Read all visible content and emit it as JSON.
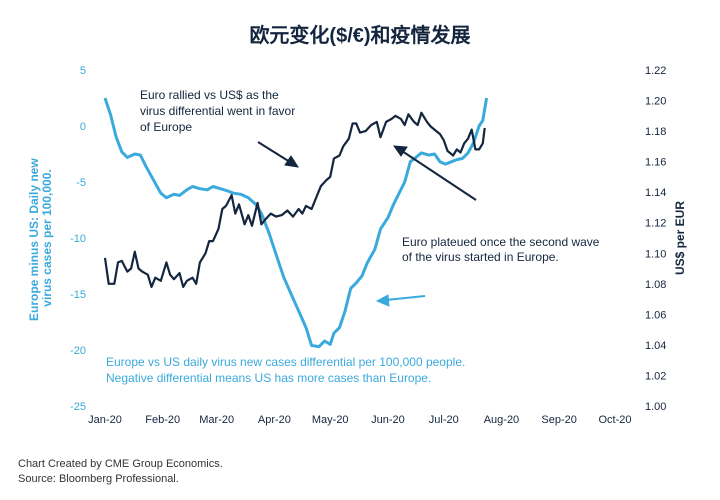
{
  "chart_data": {
    "type": "line",
    "title": "欧元变化($/€)和疫情发展",
    "x_ticks": [
      "Jan-20",
      "Feb-20",
      "Mar-20",
      "Apr-20",
      "May-20",
      "Jun-20",
      "Jul-20",
      "Aug-20",
      "Sep-20",
      "Oct-20"
    ],
    "y_left": {
      "label": "Europe minus US: Daily new virus cases per 100,000.",
      "ticks": [
        "5",
        "0",
        "-5",
        "-10",
        "-15",
        "-20",
        "-25"
      ],
      "range": [
        -25,
        5
      ]
    },
    "y_right": {
      "label": "US$ per EUR",
      "ticks": [
        "1.22",
        "1.20",
        "1.18",
        "1.16",
        "1.14",
        "1.12",
        "1.10",
        "1.08",
        "1.06",
        "1.04",
        "1.02",
        "1.00"
      ],
      "range": [
        1.0,
        1.22
      ]
    },
    "series": [
      {
        "key": "cases_diff",
        "axis": "left",
        "color": "#3AAADC",
        "points": [
          [
            "2020-01-01",
            2.5
          ],
          [
            "2020-01-04",
            1.0
          ],
          [
            "2020-01-07",
            -1.0
          ],
          [
            "2020-01-10",
            -2.3
          ],
          [
            "2020-01-13",
            -2.8
          ],
          [
            "2020-01-17",
            -2.5
          ],
          [
            "2020-01-20",
            -2.6
          ],
          [
            "2020-01-23",
            -3.6
          ],
          [
            "2020-01-27",
            -4.8
          ],
          [
            "2020-01-31",
            -6.0
          ],
          [
            "2020-02-03",
            -6.4
          ],
          [
            "2020-02-07",
            -6.1
          ],
          [
            "2020-02-10",
            -6.2
          ],
          [
            "2020-02-14",
            -5.7
          ],
          [
            "2020-02-17",
            -5.4
          ],
          [
            "2020-02-21",
            -5.6
          ],
          [
            "2020-02-25",
            -5.7
          ],
          [
            "2020-02-28",
            -5.4
          ],
          [
            "2020-03-03",
            -5.6
          ],
          [
            "2020-03-07",
            -5.8
          ],
          [
            "2020-03-10",
            -6.0
          ],
          [
            "2020-03-14",
            -6.1
          ],
          [
            "2020-03-18",
            -6.4
          ],
          [
            "2020-03-22",
            -7.0
          ],
          [
            "2020-03-25",
            -7.8
          ],
          [
            "2020-03-29",
            -9.5
          ],
          [
            "2020-04-02",
            -11.5
          ],
          [
            "2020-04-06",
            -13.5
          ],
          [
            "2020-04-10",
            -15.0
          ],
          [
            "2020-04-14",
            -16.5
          ],
          [
            "2020-04-18",
            -18.0
          ],
          [
            "2020-04-21",
            -19.6
          ],
          [
            "2020-04-25",
            -19.7
          ],
          [
            "2020-04-28",
            -19.2
          ],
          [
            "2020-05-01",
            -19.5
          ],
          [
            "2020-05-03",
            -18.5
          ],
          [
            "2020-05-06",
            -18.0
          ],
          [
            "2020-05-09",
            -16.5
          ],
          [
            "2020-05-12",
            -14.5
          ],
          [
            "2020-05-15",
            -14.0
          ],
          [
            "2020-05-18",
            -13.4
          ],
          [
            "2020-05-21",
            -12.2
          ],
          [
            "2020-05-25",
            -11.0
          ],
          [
            "2020-05-28",
            -9.2
          ],
          [
            "2020-06-01",
            -8.2
          ],
          [
            "2020-06-04",
            -7.0
          ],
          [
            "2020-06-07",
            -6.0
          ],
          [
            "2020-06-10",
            -5.0
          ],
          [
            "2020-06-13",
            -3.2
          ],
          [
            "2020-06-16",
            -2.8
          ],
          [
            "2020-06-19",
            -2.4
          ],
          [
            "2020-06-23",
            -2.6
          ],
          [
            "2020-06-26",
            -2.5
          ],
          [
            "2020-06-29",
            -3.2
          ],
          [
            "2020-07-02",
            -3.4
          ],
          [
            "2020-07-05",
            -3.2
          ],
          [
            "2020-07-08",
            -3.0
          ],
          [
            "2020-07-11",
            -2.9
          ],
          [
            "2020-07-14",
            -2.4
          ],
          [
            "2020-07-17",
            -1.5
          ],
          [
            "2020-07-20",
            0.0
          ],
          [
            "2020-07-22",
            0.5
          ],
          [
            "2020-07-24",
            2.5
          ]
        ]
      },
      {
        "key": "usd_per_eur",
        "axis": "right",
        "color": "#14253E",
        "points": [
          [
            "2020-01-01",
            1.097
          ],
          [
            "2020-01-03",
            1.08
          ],
          [
            "2020-01-06",
            1.08
          ],
          [
            "2020-01-08",
            1.094
          ],
          [
            "2020-01-10",
            1.095
          ],
          [
            "2020-01-13",
            1.088
          ],
          [
            "2020-01-15",
            1.09
          ],
          [
            "2020-01-17",
            1.101
          ],
          [
            "2020-01-19",
            1.09
          ],
          [
            "2020-01-21",
            1.088
          ],
          [
            "2020-01-24",
            1.086
          ],
          [
            "2020-01-26",
            1.078
          ],
          [
            "2020-01-28",
            1.084
          ],
          [
            "2020-01-31",
            1.082
          ],
          [
            "2020-02-03",
            1.094
          ],
          [
            "2020-02-05",
            1.086
          ],
          [
            "2020-02-07",
            1.083
          ],
          [
            "2020-02-10",
            1.087
          ],
          [
            "2020-02-12",
            1.078
          ],
          [
            "2020-02-14",
            1.082
          ],
          [
            "2020-02-17",
            1.084
          ],
          [
            "2020-02-19",
            1.08
          ],
          [
            "2020-02-21",
            1.094
          ],
          [
            "2020-02-24",
            1.1
          ],
          [
            "2020-02-26",
            1.108
          ],
          [
            "2020-02-28",
            1.108
          ],
          [
            "2020-03-02",
            1.116
          ],
          [
            "2020-03-04",
            1.129
          ],
          [
            "2020-03-06",
            1.131
          ],
          [
            "2020-03-09",
            1.138
          ],
          [
            "2020-03-11",
            1.126
          ],
          [
            "2020-03-13",
            1.132
          ],
          [
            "2020-03-16",
            1.119
          ],
          [
            "2020-03-18",
            1.125
          ],
          [
            "2020-03-20",
            1.118
          ],
          [
            "2020-03-23",
            1.133
          ],
          [
            "2020-03-25",
            1.119
          ],
          [
            "2020-03-27",
            1.122
          ],
          [
            "2020-03-30",
            1.126
          ],
          [
            "2020-04-02",
            1.124
          ],
          [
            "2020-04-05",
            1.125
          ],
          [
            "2020-04-08",
            1.128
          ],
          [
            "2020-04-11",
            1.124
          ],
          [
            "2020-04-14",
            1.129
          ],
          [
            "2020-04-16",
            1.126
          ],
          [
            "2020-04-18",
            1.131
          ],
          [
            "2020-04-21",
            1.129
          ],
          [
            "2020-04-23",
            1.135
          ],
          [
            "2020-04-26",
            1.144
          ],
          [
            "2020-04-29",
            1.148
          ],
          [
            "2020-05-01",
            1.15
          ],
          [
            "2020-05-03",
            1.162
          ],
          [
            "2020-05-06",
            1.164
          ],
          [
            "2020-05-08",
            1.17
          ],
          [
            "2020-05-11",
            1.175
          ],
          [
            "2020-05-13",
            1.185
          ],
          [
            "2020-05-15",
            1.185
          ],
          [
            "2020-05-17",
            1.179
          ],
          [
            "2020-05-20",
            1.18
          ],
          [
            "2020-05-23",
            1.184
          ],
          [
            "2020-05-26",
            1.186
          ],
          [
            "2020-05-28",
            1.176
          ],
          [
            "2020-05-31",
            1.186
          ],
          [
            "2020-06-03",
            1.188
          ],
          [
            "2020-06-05",
            1.19
          ],
          [
            "2020-06-08",
            1.188
          ],
          [
            "2020-06-10",
            1.184
          ],
          [
            "2020-06-12",
            1.191
          ],
          [
            "2020-06-15",
            1.186
          ],
          [
            "2020-06-17",
            1.184
          ],
          [
            "2020-06-19",
            1.192
          ],
          [
            "2020-06-22",
            1.186
          ],
          [
            "2020-06-24",
            1.183
          ],
          [
            "2020-06-26",
            1.181
          ],
          [
            "2020-06-29",
            1.178
          ],
          [
            "2020-07-01",
            1.174
          ],
          [
            "2020-07-03",
            1.167
          ],
          [
            "2020-07-06",
            1.164
          ],
          [
            "2020-07-08",
            1.168
          ],
          [
            "2020-07-10",
            1.166
          ],
          [
            "2020-07-12",
            1.172
          ],
          [
            "2020-07-14",
            1.175
          ],
          [
            "2020-07-16",
            1.181
          ],
          [
            "2020-07-18",
            1.168
          ],
          [
            "2020-07-20",
            1.168
          ],
          [
            "2020-07-22",
            1.172
          ],
          [
            "2020-07-23",
            1.182
          ]
        ]
      }
    ],
    "annotations": {
      "euro_rallied": [
        "Euro rallied vs US$ as the",
        "virus differential went in favor",
        "of Europe"
      ],
      "euro_plateaued": [
        "Euro plateued once the second wave",
        "of the virus started in Europe."
      ],
      "differential_note": [
        "Europe vs US daily virus new cases differential per 100,000 people.",
        "Negative differential means US has more cases than Europe."
      ]
    },
    "grid": false
  },
  "footer": {
    "line1": "Chart Created by CME Group Economics.",
    "line2": "Source:  Bloomberg Professional."
  },
  "colors": {
    "cases_line": "#3AAADC",
    "fx_line": "#14253E",
    "title": "#14253E",
    "axis_text_left": "#3AAADC",
    "axis_text_right": "#14253E"
  }
}
